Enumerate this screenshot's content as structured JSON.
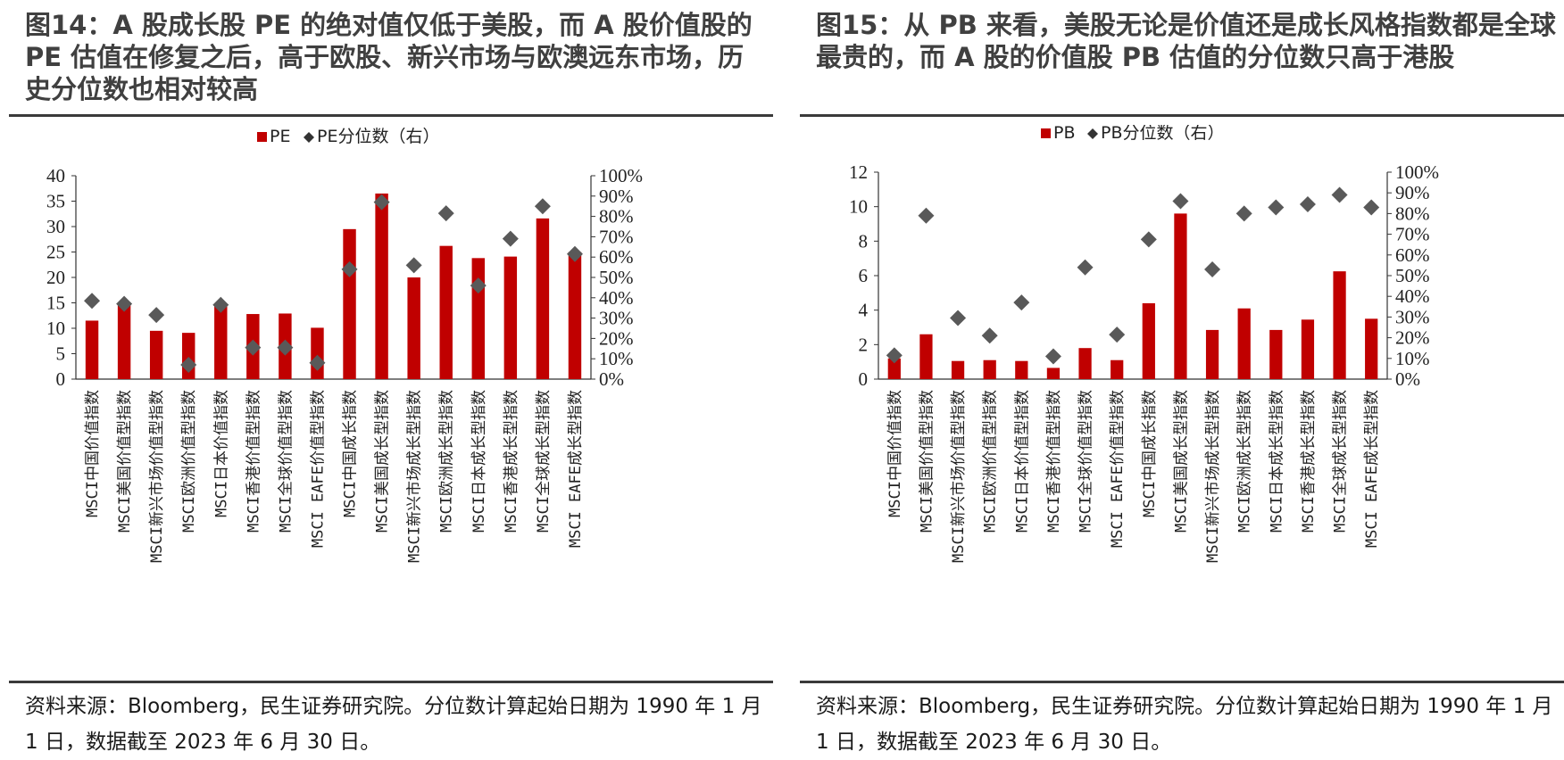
{
  "panels": [
    {
      "title": "图14：A 股成长股 PE 的绝对值仅低于美股，而 A 股价值股的 PE 估值在修复之后，高于欧股、新兴市场与欧澳远东市场，历史分位数也相对较高",
      "source": "资料来源：Bloomberg，民生证券研究院。分位数计算起始日期为 1990 年 1 月 1 日，数据截至 2023 年 6 月 30 日。"
    },
    {
      "title": "图15：从 PB 来看，美股无论是价值还是成长风格指数都是全球最贵的，而 A 股的价值股 PB 估值的分位数只高于港股",
      "source": "资料来源：Bloomberg，民生证券研究院。分位数计算起始日期为 1990 年 1 月 1 日，数据截至 2023 年 6 月 30 日。"
    }
  ],
  "colors": {
    "bar": "#C00000",
    "marker": "#595959",
    "axis": "#333333"
  },
  "chart_data": [
    {
      "type": "bar",
      "categories": [
        "MSCI中国价值指数",
        "MSCI美国价值型指数",
        "MSCI新兴市场价值型指数",
        "MSCI欧洲价值型指数",
        "MSCI日本价值指数",
        "MSCI香港价值型指数",
        "MSCI全球价值型指数",
        "MSCI EAFE价值型指数",
        "MSCI中国成长指数",
        "MSCI美国成长型指数",
        "MSCI新兴市场成长型指数",
        "MSCI欧洲成长型指数",
        "MSCI日本成长型指数",
        "MSCI香港成长型指数",
        "MSCI全球成长型指数",
        "MSCI EAFE成长型指数"
      ],
      "series": [
        {
          "name": "PE",
          "kind": "bar",
          "axis": "left",
          "values": [
            11.5,
            14.8,
            9.5,
            9.1,
            14.4,
            12.8,
            12.9,
            10.1,
            29.5,
            36.5,
            20.0,
            26.2,
            23.8,
            24.1,
            31.6,
            25.0
          ]
        },
        {
          "name": "PE分位数（右）",
          "kind": "marker",
          "axis": "right",
          "values": [
            0.385,
            0.37,
            0.315,
            0.07,
            0.365,
            0.155,
            0.155,
            0.08,
            0.54,
            0.87,
            0.56,
            0.815,
            0.46,
            0.69,
            0.85,
            0.615
          ]
        }
      ],
      "ylim": [
        0,
        40
      ],
      "yticks": [
        "0",
        "5",
        "10",
        "15",
        "20",
        "25",
        "30",
        "35",
        "40"
      ],
      "y2lim": [
        0,
        1
      ],
      "y2ticks": [
        "0%",
        "10%",
        "20%",
        "30%",
        "40%",
        "50%",
        "60%",
        "70%",
        "80%",
        "90%",
        "100%"
      ],
      "legend": "top-center",
      "grid": false
    },
    {
      "type": "bar",
      "categories": [
        "MSCI中国价值指数",
        "MSCI美国价值型指数",
        "MSCI新兴市场价值型指数",
        "MSCI欧洲价值型指数",
        "MSCI日本价值型指数",
        "MSCI香港价值型指数",
        "MSCI全球价值型指数",
        "MSCI EAFE价值型指数",
        "MSCI中国成长指数",
        "MSCI美国成长型指数",
        "MSCI新兴市场成长型指数",
        "MSCI欧洲成长型指数",
        "MSCI日本成长型指数",
        "MSCI香港成长型指数",
        "MSCI全球成长型指数",
        "MSCI EAFE成长型指数"
      ],
      "series": [
        {
          "name": "PB",
          "kind": "bar",
          "axis": "left",
          "values": [
            1.2,
            2.6,
            1.05,
            1.1,
            1.05,
            0.65,
            1.8,
            1.1,
            4.4,
            9.6,
            2.85,
            4.1,
            2.85,
            3.45,
            6.25,
            3.5
          ]
        },
        {
          "name": "PB分位数（右）",
          "kind": "marker",
          "axis": "right",
          "values": [
            0.115,
            0.79,
            0.295,
            0.21,
            0.37,
            0.11,
            0.54,
            0.215,
            0.675,
            0.86,
            0.53,
            0.8,
            0.83,
            0.845,
            0.89,
            0.83
          ]
        }
      ],
      "ylim": [
        0,
        12
      ],
      "yticks": [
        "0",
        "2",
        "4",
        "6",
        "8",
        "10",
        "12"
      ],
      "y2lim": [
        0,
        1
      ],
      "y2ticks": [
        "0%",
        "10%",
        "20%",
        "30%",
        "40%",
        "50%",
        "60%",
        "70%",
        "80%",
        "90%",
        "100%"
      ],
      "legend": "top-center",
      "grid": false
    }
  ]
}
